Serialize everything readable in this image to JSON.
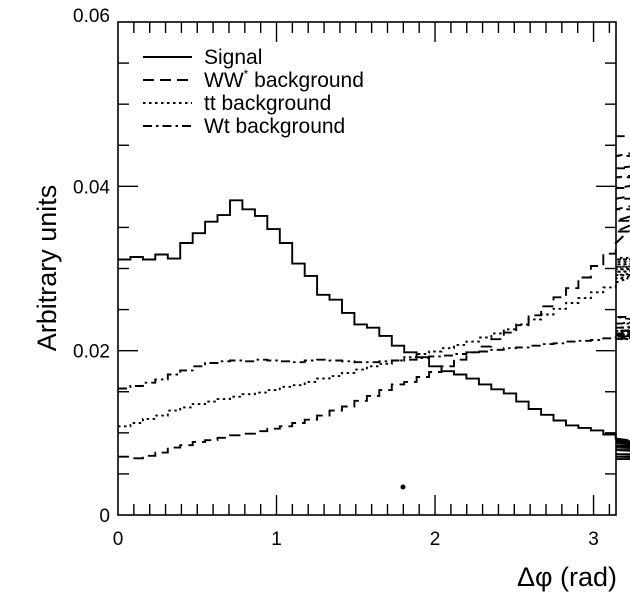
{
  "chart_data": {
    "type": "line",
    "style": "step-histogram",
    "xlabel": "Δφ (rad)",
    "ylabel": "Arbitrary units",
    "xlim": [
      0,
      3.1416
    ],
    "ylim": [
      0,
      0.06
    ],
    "x_ticks": [
      0,
      1,
      2,
      3
    ],
    "x_tick_labels": [
      "0",
      "1",
      "2",
      "3"
    ],
    "y_ticks": [
      0,
      0.02,
      0.04,
      0.06
    ],
    "y_tick_labels": [
      "0",
      "0.02",
      "0.04",
      "0.06"
    ],
    "bin_width": 0.0785,
    "legend_position": "top-left",
    "grid": false,
    "series": [
      {
        "name": "Signal",
        "line_style": "solid",
        "values": [
          0.0311,
          0.0314,
          0.0311,
          0.0317,
          0.0312,
          0.0331,
          0.0343,
          0.0357,
          0.0365,
          0.0383,
          0.0372,
          0.0364,
          0.0348,
          0.0331,
          0.0306,
          0.0291,
          0.0268,
          0.0262,
          0.0246,
          0.0232,
          0.0228,
          0.0218,
          0.0206,
          0.0198,
          0.0192,
          0.0181,
          0.0175,
          0.0171,
          0.0166,
          0.0159,
          0.0153,
          0.0148,
          0.0138,
          0.0129,
          0.0122,
          0.0115,
          0.0109,
          0.0106,
          0.0103,
          0.0098,
          0.0093,
          0.0091,
          0.0089,
          0.0087,
          0.0084,
          0.0082,
          0.0079,
          0.0074,
          0.0071,
          0.0068
        ]
      },
      {
        "name": "WW* background",
        "name_parts": [
          "WW",
          "*",
          " background"
        ],
        "line_style": "dashed",
        "values": [
          0.0071,
          0.0069,
          0.0072,
          0.0076,
          0.0082,
          0.0085,
          0.0089,
          0.0091,
          0.0094,
          0.0097,
          0.0099,
          0.0102,
          0.0105,
          0.0108,
          0.0112,
          0.0116,
          0.0121,
          0.0127,
          0.0132,
          0.0139,
          0.0145,
          0.0152,
          0.0159,
          0.0162,
          0.0168,
          0.0174,
          0.0181,
          0.0189,
          0.0198,
          0.0205,
          0.0214,
          0.0222,
          0.0231,
          0.0243,
          0.0254,
          0.0265,
          0.0276,
          0.0289,
          0.0303,
          0.0318,
          0.0331,
          0.0345,
          0.0358,
          0.0372,
          0.0385,
          0.0398,
          0.0411,
          0.0422,
          0.0437,
          0.0461
        ]
      },
      {
        "name": "tt background",
        "line_style": "dotted",
        "values": [
          0.0108,
          0.0112,
          0.0117,
          0.0121,
          0.0127,
          0.0131,
          0.0135,
          0.0138,
          0.0141,
          0.0144,
          0.0147,
          0.0149,
          0.0152,
          0.0156,
          0.0158,
          0.0162,
          0.0166,
          0.0169,
          0.0173,
          0.0177,
          0.0181,
          0.0184,
          0.0188,
          0.0192,
          0.0196,
          0.0199,
          0.0203,
          0.0207,
          0.0211,
          0.0216,
          0.0221,
          0.0226,
          0.0232,
          0.0238,
          0.0244,
          0.0251,
          0.0258,
          0.0264,
          0.0271,
          0.0277,
          0.0283,
          0.0288,
          0.0292,
          0.0296,
          0.0299,
          0.0302,
          0.0305,
          0.0308,
          0.0311,
          0.0313
        ]
      },
      {
        "name": "Wt background",
        "line_style": "dash-dot",
        "values": [
          0.0154,
          0.0157,
          0.0161,
          0.0165,
          0.0171,
          0.0176,
          0.0181,
          0.0185,
          0.0187,
          0.0188,
          0.0187,
          0.0189,
          0.0188,
          0.0187,
          0.0186,
          0.0188,
          0.0189,
          0.0188,
          0.0187,
          0.0186,
          0.0186,
          0.0187,
          0.0188,
          0.0189,
          0.0191,
          0.0193,
          0.0194,
          0.0196,
          0.0198,
          0.0199,
          0.0201,
          0.0203,
          0.0204,
          0.0206,
          0.0208,
          0.0209,
          0.0211,
          0.0212,
          0.0213,
          0.0215,
          0.0216,
          0.0214,
          0.0217,
          0.0219,
          0.0221,
          0.0224,
          0.0228,
          0.0233,
          0.0241,
          0.0222
        ]
      }
    ]
  }
}
